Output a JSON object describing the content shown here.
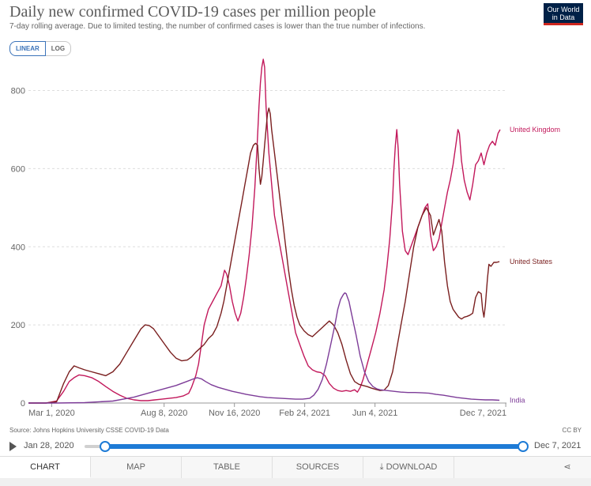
{
  "header": {
    "title": "Daily new confirmed COVID-19 cases per million people",
    "subtitle": "7-day rolling average. Due to limited testing, the number of confirmed cases is lower than the true number of infections.",
    "logo": "Our World in Data",
    "scale_options": [
      "LINEAR",
      "LOG"
    ],
    "active_scale": "LINEAR"
  },
  "chart_data": {
    "type": "line",
    "title": "Daily new confirmed COVID-19 cases per million people",
    "xlabel": "",
    "ylabel": "",
    "x_range": [
      0,
      680
    ],
    "ylim": [
      0,
      880
    ],
    "yticks": [
      0,
      200,
      400,
      600,
      800
    ],
    "xtick_labels": [
      {
        "day": 33,
        "label": "Mar 1, 2020"
      },
      {
        "day": 193,
        "label": "Aug 8, 2020"
      },
      {
        "day": 293,
        "label": "Nov 16, 2020"
      },
      {
        "day": 393,
        "label": "Feb 24, 2021"
      },
      {
        "day": 493,
        "label": "Jun 4, 2021"
      },
      {
        "day": 679,
        "label": "Dec 7, 2021"
      }
    ],
    "series": [
      {
        "name": "United Kingdom",
        "color": "#c2185b",
        "points": [
          [
            0,
            0
          ],
          [
            25,
            0
          ],
          [
            40,
            5
          ],
          [
            50,
            30
          ],
          [
            58,
            55
          ],
          [
            65,
            65
          ],
          [
            72,
            72
          ],
          [
            80,
            70
          ],
          [
            90,
            65
          ],
          [
            100,
            55
          ],
          [
            110,
            42
          ],
          [
            120,
            30
          ],
          [
            130,
            20
          ],
          [
            140,
            12
          ],
          [
            150,
            8
          ],
          [
            160,
            6
          ],
          [
            170,
            6
          ],
          [
            180,
            8
          ],
          [
            190,
            10
          ],
          [
            200,
            12
          ],
          [
            210,
            14
          ],
          [
            220,
            18
          ],
          [
            228,
            25
          ],
          [
            232,
            40
          ],
          [
            238,
            70
          ],
          [
            242,
            100
          ],
          [
            246,
            150
          ],
          [
            250,
            200
          ],
          [
            256,
            240
          ],
          [
            262,
            260
          ],
          [
            268,
            280
          ],
          [
            274,
            300
          ],
          [
            279,
            340
          ],
          [
            282,
            330
          ],
          [
            286,
            300
          ],
          [
            290,
            260
          ],
          [
            294,
            230
          ],
          [
            298,
            210
          ],
          [
            302,
            230
          ],
          [
            306,
            270
          ],
          [
            310,
            320
          ],
          [
            314,
            380
          ],
          [
            318,
            450
          ],
          [
            322,
            550
          ],
          [
            325,
            650
          ],
          [
            328,
            760
          ],
          [
            330,
            820
          ],
          [
            332,
            860
          ],
          [
            334,
            880
          ],
          [
            336,
            860
          ],
          [
            338,
            760
          ],
          [
            342,
            640
          ],
          [
            346,
            560
          ],
          [
            350,
            480
          ],
          [
            356,
            420
          ],
          [
            362,
            360
          ],
          [
            368,
            300
          ],
          [
            374,
            240
          ],
          [
            380,
            180
          ],
          [
            386,
            150
          ],
          [
            392,
            120
          ],
          [
            398,
            95
          ],
          [
            404,
            85
          ],
          [
            410,
            80
          ],
          [
            416,
            78
          ],
          [
            422,
            70
          ],
          [
            428,
            50
          ],
          [
            434,
            38
          ],
          [
            440,
            32
          ],
          [
            446,
            30
          ],
          [
            452,
            32
          ],
          [
            458,
            30
          ],
          [
            464,
            34
          ],
          [
            468,
            28
          ],
          [
            472,
            40
          ],
          [
            476,
            60
          ],
          [
            482,
            100
          ],
          [
            488,
            140
          ],
          [
            494,
            180
          ],
          [
            500,
            230
          ],
          [
            506,
            290
          ],
          [
            510,
            350
          ],
          [
            514,
            420
          ],
          [
            518,
            520
          ],
          [
            520,
            600
          ],
          [
            522,
            660
          ],
          [
            524,
            700
          ],
          [
            526,
            650
          ],
          [
            528,
            560
          ],
          [
            532,
            440
          ],
          [
            536,
            390
          ],
          [
            540,
            380
          ],
          [
            544,
            400
          ],
          [
            548,
            420
          ],
          [
            552,
            440
          ],
          [
            556,
            460
          ],
          [
            560,
            480
          ],
          [
            564,
            500
          ],
          [
            568,
            510
          ],
          [
            572,
            430
          ],
          [
            576,
            390
          ],
          [
            580,
            400
          ],
          [
            584,
            420
          ],
          [
            588,
            460
          ],
          [
            592,
            500
          ],
          [
            596,
            540
          ],
          [
            600,
            570
          ],
          [
            604,
            610
          ],
          [
            608,
            660
          ],
          [
            611,
            700
          ],
          [
            613,
            690
          ],
          [
            616,
            620
          ],
          [
            620,
            570
          ],
          [
            624,
            540
          ],
          [
            628,
            520
          ],
          [
            632,
            560
          ],
          [
            636,
            610
          ],
          [
            640,
            620
          ],
          [
            644,
            640
          ],
          [
            648,
            610
          ],
          [
            652,
            640
          ],
          [
            656,
            660
          ],
          [
            660,
            670
          ],
          [
            664,
            660
          ],
          [
            668,
            690
          ],
          [
            671,
            700
          ]
        ]
      },
      {
        "name": "United States",
        "color": "#7a1f1f",
        "points": [
          [
            0,
            0
          ],
          [
            25,
            0
          ],
          [
            40,
            3
          ],
          [
            50,
            50
          ],
          [
            58,
            80
          ],
          [
            65,
            95
          ],
          [
            72,
            90
          ],
          [
            80,
            85
          ],
          [
            90,
            80
          ],
          [
            100,
            75
          ],
          [
            110,
            70
          ],
          [
            120,
            80
          ],
          [
            130,
            100
          ],
          [
            140,
            130
          ],
          [
            150,
            160
          ],
          [
            160,
            190
          ],
          [
            166,
            200
          ],
          [
            172,
            198
          ],
          [
            178,
            190
          ],
          [
            186,
            170
          ],
          [
            194,
            150
          ],
          [
            202,
            130
          ],
          [
            210,
            115
          ],
          [
            218,
            108
          ],
          [
            226,
            110
          ],
          [
            232,
            118
          ],
          [
            238,
            130
          ],
          [
            244,
            140
          ],
          [
            250,
            150
          ],
          [
            256,
            165
          ],
          [
            262,
            175
          ],
          [
            268,
            195
          ],
          [
            274,
            230
          ],
          [
            278,
            260
          ],
          [
            282,
            300
          ],
          [
            286,
            340
          ],
          [
            292,
            400
          ],
          [
            298,
            460
          ],
          [
            304,
            520
          ],
          [
            308,
            560
          ],
          [
            312,
            600
          ],
          [
            316,
            640
          ],
          [
            320,
            660
          ],
          [
            323,
            665
          ],
          [
            326,
            660
          ],
          [
            328,
            600
          ],
          [
            330,
            560
          ],
          [
            332,
            580
          ],
          [
            334,
            620
          ],
          [
            336,
            660
          ],
          [
            338,
            700
          ],
          [
            340,
            740
          ],
          [
            342,
            755
          ],
          [
            344,
            740
          ],
          [
            346,
            700
          ],
          [
            350,
            640
          ],
          [
            354,
            580
          ],
          [
            358,
            520
          ],
          [
            362,
            460
          ],
          [
            366,
            400
          ],
          [
            370,
            340
          ],
          [
            374,
            290
          ],
          [
            378,
            250
          ],
          [
            382,
            220
          ],
          [
            386,
            200
          ],
          [
            392,
            185
          ],
          [
            398,
            175
          ],
          [
            404,
            170
          ],
          [
            410,
            180
          ],
          [
            416,
            190
          ],
          [
            422,
            200
          ],
          [
            428,
            210
          ],
          [
            434,
            200
          ],
          [
            440,
            180
          ],
          [
            446,
            150
          ],
          [
            452,
            110
          ],
          [
            458,
            75
          ],
          [
            464,
            55
          ],
          [
            470,
            48
          ],
          [
            476,
            45
          ],
          [
            482,
            42
          ],
          [
            488,
            38
          ],
          [
            494,
            35
          ],
          [
            500,
            32
          ],
          [
            506,
            33
          ],
          [
            512,
            45
          ],
          [
            518,
            80
          ],
          [
            524,
            140
          ],
          [
            530,
            200
          ],
          [
            536,
            260
          ],
          [
            542,
            330
          ],
          [
            548,
            400
          ],
          [
            554,
            450
          ],
          [
            560,
            480
          ],
          [
            566,
            500
          ],
          [
            572,
            480
          ],
          [
            576,
            430
          ],
          [
            580,
            450
          ],
          [
            584,
            470
          ],
          [
            588,
            440
          ],
          [
            592,
            360
          ],
          [
            596,
            300
          ],
          [
            600,
            260
          ],
          [
            604,
            240
          ],
          [
            608,
            230
          ],
          [
            612,
            220
          ],
          [
            616,
            215
          ],
          [
            620,
            220
          ],
          [
            624,
            222
          ],
          [
            628,
            225
          ],
          [
            632,
            230
          ],
          [
            636,
            270
          ],
          [
            640,
            285
          ],
          [
            644,
            280
          ],
          [
            646,
            240
          ],
          [
            648,
            220
          ],
          [
            650,
            250
          ],
          [
            653,
            320
          ],
          [
            655,
            355
          ],
          [
            658,
            350
          ],
          [
            662,
            360
          ],
          [
            666,
            360
          ],
          [
            670,
            362
          ]
        ]
      },
      {
        "name": "India",
        "color": "#7d3c98",
        "points": [
          [
            0,
            0
          ],
          [
            40,
            0
          ],
          [
            80,
            1
          ],
          [
            120,
            5
          ],
          [
            150,
            15
          ],
          [
            170,
            25
          ],
          [
            190,
            35
          ],
          [
            210,
            45
          ],
          [
            225,
            55
          ],
          [
            235,
            62
          ],
          [
            240,
            65
          ],
          [
            246,
            62
          ],
          [
            252,
            55
          ],
          [
            260,
            47
          ],
          [
            270,
            40
          ],
          [
            280,
            35
          ],
          [
            290,
            30
          ],
          [
            300,
            26
          ],
          [
            310,
            22
          ],
          [
            320,
            19
          ],
          [
            330,
            16
          ],
          [
            340,
            14
          ],
          [
            350,
            13
          ],
          [
            360,
            12
          ],
          [
            370,
            11
          ],
          [
            380,
            10
          ],
          [
            390,
            10
          ],
          [
            400,
            12
          ],
          [
            406,
            20
          ],
          [
            412,
            35
          ],
          [
            418,
            60
          ],
          [
            424,
            100
          ],
          [
            430,
            150
          ],
          [
            436,
            200
          ],
          [
            440,
            240
          ],
          [
            444,
            265
          ],
          [
            448,
            278
          ],
          [
            450,
            282
          ],
          [
            452,
            280
          ],
          [
            456,
            260
          ],
          [
            460,
            225
          ],
          [
            466,
            175
          ],
          [
            472,
            120
          ],
          [
            478,
            80
          ],
          [
            484,
            55
          ],
          [
            490,
            42
          ],
          [
            496,
            36
          ],
          [
            500,
            34
          ],
          [
            510,
            32
          ],
          [
            520,
            30
          ],
          [
            530,
            28
          ],
          [
            540,
            27
          ],
          [
            550,
            27
          ],
          [
            560,
            26
          ],
          [
            570,
            25
          ],
          [
            580,
            22
          ],
          [
            590,
            20
          ],
          [
            600,
            17
          ],
          [
            610,
            14
          ],
          [
            620,
            12
          ],
          [
            630,
            10
          ],
          [
            640,
            9
          ],
          [
            650,
            8
          ],
          [
            660,
            8
          ],
          [
            670,
            7
          ]
        ]
      }
    ]
  },
  "footer": {
    "source": "Source: Johns Hopkins University CSSE COVID-19 Data",
    "license": "CC BY",
    "timeline_start": "Jan 28, 2020",
    "timeline_end": "Dec 7, 2021"
  },
  "tabs": [
    {
      "label": "CHART",
      "active": true
    },
    {
      "label": "MAP",
      "active": false
    },
    {
      "label": "TABLE",
      "active": false
    },
    {
      "label": "SOURCES",
      "active": false
    },
    {
      "label": "DOWNLOAD",
      "active": false
    }
  ]
}
